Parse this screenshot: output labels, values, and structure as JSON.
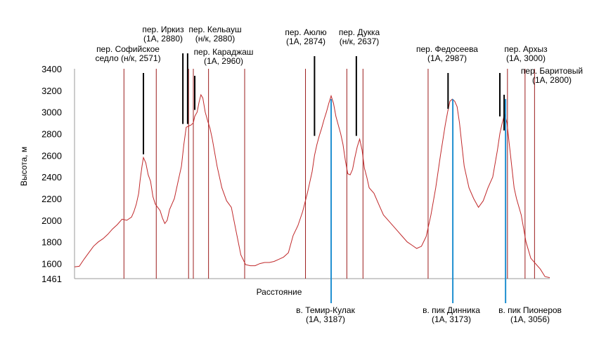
{
  "chart_data": {
    "type": "line",
    "title": "",
    "xlabel": "Расстояние",
    "ylabel": "Высота, м",
    "ylim": [
      1461,
      3400
    ],
    "y_ticks": [
      "1461",
      "1600",
      "1800",
      "2000",
      "2200",
      "2400",
      "2600",
      "2800",
      "3000",
      "3200",
      "3400"
    ],
    "grid": false,
    "x_range": [
      0,
      1
    ],
    "series": [
      {
        "color": "#c0282a",
        "profile": [
          [
            0.0,
            1570
          ],
          [
            0.01,
            1575
          ],
          [
            0.02,
            1640
          ],
          [
            0.03,
            1700
          ],
          [
            0.04,
            1760
          ],
          [
            0.05,
            1800
          ],
          [
            0.06,
            1830
          ],
          [
            0.07,
            1870
          ],
          [
            0.08,
            1920
          ],
          [
            0.09,
            1960
          ],
          [
            0.1,
            2010
          ],
          [
            0.11,
            2000
          ],
          [
            0.12,
            2030
          ],
          [
            0.125,
            2080
          ],
          [
            0.13,
            2150
          ],
          [
            0.135,
            2250
          ],
          [
            0.138,
            2370
          ],
          [
            0.142,
            2500
          ],
          [
            0.145,
            2580
          ],
          [
            0.15,
            2530
          ],
          [
            0.155,
            2420
          ],
          [
            0.16,
            2360
          ],
          [
            0.165,
            2220
          ],
          [
            0.17,
            2150
          ],
          [
            0.175,
            2120
          ],
          [
            0.18,
            2090
          ],
          [
            0.185,
            2020
          ],
          [
            0.19,
            1970
          ],
          [
            0.195,
            2000
          ],
          [
            0.2,
            2100
          ],
          [
            0.21,
            2200
          ],
          [
            0.22,
            2400
          ],
          [
            0.225,
            2500
          ],
          [
            0.23,
            2700
          ],
          [
            0.235,
            2860
          ],
          [
            0.24,
            2870
          ],
          [
            0.245,
            2880
          ],
          [
            0.25,
            2900
          ],
          [
            0.253,
            2960
          ],
          [
            0.258,
            3000
          ],
          [
            0.262,
            3090
          ],
          [
            0.266,
            3160
          ],
          [
            0.27,
            3130
          ],
          [
            0.275,
            3000
          ],
          [
            0.28,
            2920
          ],
          [
            0.285,
            2850
          ],
          [
            0.29,
            2750
          ],
          [
            0.3,
            2500
          ],
          [
            0.31,
            2300
          ],
          [
            0.32,
            2180
          ],
          [
            0.33,
            2120
          ],
          [
            0.34,
            1900
          ],
          [
            0.35,
            1680
          ],
          [
            0.36,
            1590
          ],
          [
            0.37,
            1580
          ],
          [
            0.38,
            1580
          ],
          [
            0.39,
            1600
          ],
          [
            0.4,
            1610
          ],
          [
            0.41,
            1610
          ],
          [
            0.42,
            1620
          ],
          [
            0.43,
            1640
          ],
          [
            0.44,
            1660
          ],
          [
            0.45,
            1700
          ],
          [
            0.455,
            1780
          ],
          [
            0.46,
            1860
          ],
          [
            0.47,
            1950
          ],
          [
            0.48,
            2080
          ],
          [
            0.49,
            2250
          ],
          [
            0.5,
            2450
          ],
          [
            0.505,
            2600
          ],
          [
            0.51,
            2700
          ],
          [
            0.515,
            2780
          ],
          [
            0.52,
            2850
          ],
          [
            0.525,
            2930
          ],
          [
            0.53,
            3000
          ],
          [
            0.535,
            3080
          ],
          [
            0.54,
            3150
          ],
          [
            0.545,
            3080
          ],
          [
            0.55,
            2960
          ],
          [
            0.555,
            2880
          ],
          [
            0.56,
            2800
          ],
          [
            0.565,
            2700
          ],
          [
            0.57,
            2550
          ],
          [
            0.575,
            2430
          ],
          [
            0.58,
            2420
          ],
          [
            0.585,
            2470
          ],
          [
            0.59,
            2580
          ],
          [
            0.595,
            2680
          ],
          [
            0.6,
            2750
          ],
          [
            0.605,
            2650
          ],
          [
            0.61,
            2480
          ],
          [
            0.615,
            2400
          ],
          [
            0.62,
            2300
          ],
          [
            0.63,
            2250
          ],
          [
            0.64,
            2150
          ],
          [
            0.65,
            2050
          ],
          [
            0.66,
            2000
          ],
          [
            0.67,
            1950
          ],
          [
            0.68,
            1900
          ],
          [
            0.69,
            1850
          ],
          [
            0.7,
            1800
          ],
          [
            0.71,
            1770
          ],
          [
            0.72,
            1740
          ],
          [
            0.73,
            1760
          ],
          [
            0.74,
            1850
          ],
          [
            0.75,
            2050
          ],
          [
            0.76,
            2300
          ],
          [
            0.77,
            2600
          ],
          [
            0.78,
            2880
          ],
          [
            0.785,
            3000
          ],
          [
            0.79,
            3100
          ],
          [
            0.795,
            3120
          ],
          [
            0.8,
            3100
          ],
          [
            0.805,
            3050
          ],
          [
            0.81,
            2900
          ],
          [
            0.815,
            2700
          ],
          [
            0.82,
            2500
          ],
          [
            0.83,
            2300
          ],
          [
            0.84,
            2200
          ],
          [
            0.85,
            2120
          ],
          [
            0.86,
            2180
          ],
          [
            0.87,
            2300
          ],
          [
            0.88,
            2400
          ],
          [
            0.89,
            2650
          ],
          [
            0.895,
            2800
          ],
          [
            0.9,
            2900
          ],
          [
            0.905,
            2980
          ],
          [
            0.91,
            2900
          ],
          [
            0.915,
            2700
          ],
          [
            0.92,
            2500
          ],
          [
            0.925,
            2300
          ],
          [
            0.93,
            2200
          ],
          [
            0.94,
            2050
          ],
          [
            0.95,
            1800
          ],
          [
            0.96,
            1650
          ],
          [
            0.97,
            1600
          ],
          [
            0.98,
            1550
          ],
          [
            0.99,
            1480
          ],
          [
            1.0,
            1470
          ]
        ]
      }
    ],
    "reference_lines_x": [
      0.104,
      0.172,
      0.24,
      0.25,
      0.282,
      0.358,
      0.486,
      0.573,
      0.607,
      0.744,
      0.911,
      0.948,
      0.968
    ],
    "passes": [
      {
        "lines": [
          "пер. Софийское",
          "седло (н/к, 2571)"
        ],
        "x": 0.145,
        "y": 2610
      },
      {
        "lines": [
          "пер. Иркиз",
          "(1А, 2880)"
        ],
        "x": 0.228,
        "y": 2890
      },
      {
        "lines": [
          "пер. Кельауш",
          "(н/к, 2880)"
        ],
        "x": 0.238,
        "y": 2890
      },
      {
        "lines": [
          "пер. Караджаш",
          "(1А, 2960)"
        ],
        "x": 0.253,
        "y": 3020
      },
      {
        "lines": [
          "пер. Аюлю",
          "(1А, 2874)"
        ],
        "x": 0.505,
        "y": 2780
      },
      {
        "lines": [
          "пер. Дукка",
          "(н/к, 2637)"
        ],
        "x": 0.593,
        "y": 2780
      },
      {
        "lines": [
          "пер. Федосеева",
          "(1А, 2987)"
        ],
        "x": 0.786,
        "y": 3030
      },
      {
        "lines": [
          "пер. Архыз",
          "(1А, 3000)"
        ],
        "x": 0.895,
        "y": 2960
      },
      {
        "lines": [
          "пер. Баритовый",
          "(1А, 2800)"
        ],
        "x": 0.904,
        "y": 2830
      }
    ],
    "peaks": [
      {
        "lines": [
          "в. Темир-Кулак",
          "(1А, 3187)"
        ],
        "x": 0.54
      },
      {
        "lines": [
          "в. пик Динника",
          "(1А, 3173)"
        ],
        "x": 0.796
      },
      {
        "lines": [
          "в. пик Пионеров",
          "(1А, 3056)"
        ],
        "x": 0.907
      }
    ]
  }
}
